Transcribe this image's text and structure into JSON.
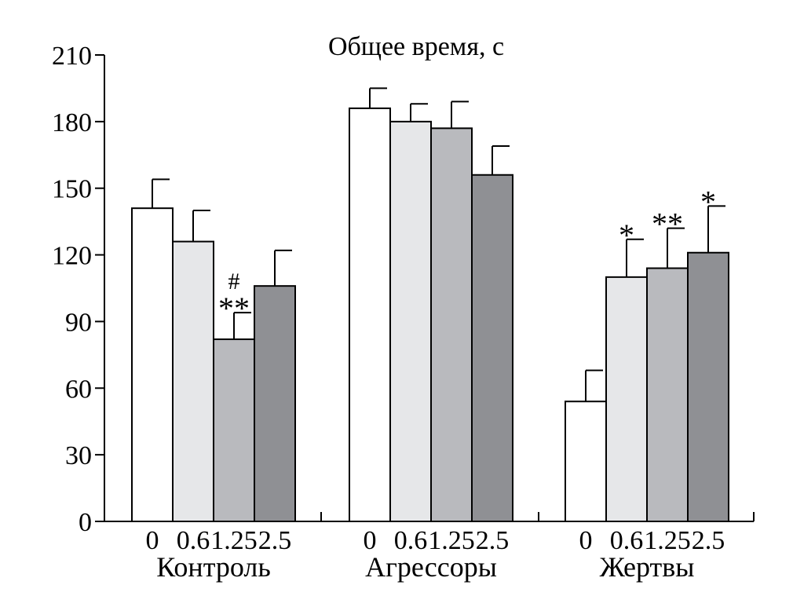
{
  "chart_data": {
    "type": "bar",
    "title": "Общее время, с",
    "xlabel": "",
    "ylabel": "",
    "ylim": [
      0,
      210
    ],
    "yticks": [
      0,
      30,
      60,
      90,
      120,
      150,
      180,
      210
    ],
    "grid": false,
    "legend": "none",
    "dose_labels": [
      "0",
      "0.6",
      "1.25",
      "2.5"
    ],
    "dose_colors": [
      "#ffffff",
      "#e6e7e9",
      "#b9babe",
      "#8f9094"
    ],
    "groups": [
      {
        "name": "Контроль",
        "values": [
          141,
          126,
          82,
          106
        ],
        "errors": [
          13,
          14,
          12,
          16
        ],
        "annotations": [
          "",
          "",
          "#\n**",
          ""
        ]
      },
      {
        "name": "Агрессоры",
        "values": [
          186,
          180,
          177,
          156
        ],
        "errors": [
          9,
          8,
          12,
          13
        ],
        "annotations": [
          "",
          "",
          "",
          ""
        ]
      },
      {
        "name": "Жертвы",
        "values": [
          54,
          110,
          114,
          121
        ],
        "errors": [
          14,
          17,
          18,
          21
        ],
        "annotations": [
          "",
          "*",
          "**",
          "*"
        ]
      }
    ]
  }
}
